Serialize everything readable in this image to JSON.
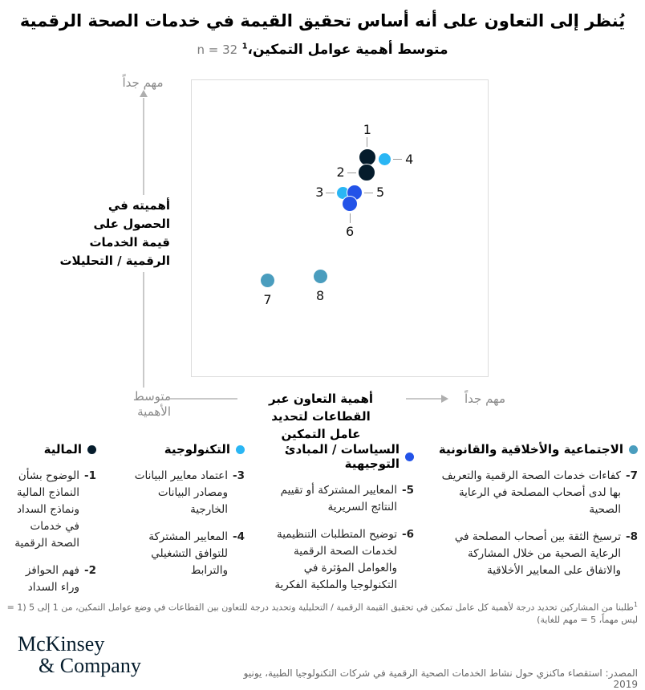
{
  "title": "يُنظر إلى التعاون على أنه أساس تحقيق القيمة في خدمات الصحة الرقمية",
  "subtitle": {
    "text": "متوسط أهمية عوامل التمكين،",
    "sup": "1",
    "n": "n = 32"
  },
  "chart_data": {
    "type": "scatter",
    "xlabel": "أهمية التعاون عبر القطاعات لتحديد عامل التمكين",
    "xlabel_lines": [
      "أهمية التعاون عبر القطاعات لتحديد",
      "عامل التمكين"
    ],
    "ylabel": "أهميته في الحصول على قيمة الخدمات الرقمية / التحليلات",
    "ylabel_lines": [
      "أهميته في",
      "الحصول على",
      "قيمة الخدمات",
      "الرقمية / التحليلات"
    ],
    "y_max_label": "مهم جداً",
    "x_max_label": "مهم جداً",
    "origin_label": "متوسط الأهمية",
    "origin_label_lines": [
      "متوسط",
      "الأهمية"
    ],
    "value_scale": "1 إلى 5 (1 = ليس مهماً، 5 = مهم للغاية)",
    "points": [
      {
        "label": "1",
        "category": "financial",
        "x_pct": 59.3,
        "y_pct": 25.9,
        "size": 22,
        "label_side": "top",
        "leader": true,
        "approx_x": 4.2,
        "approx_y": 4.5
      },
      {
        "label": "2",
        "category": "financial",
        "x_pct": 59.0,
        "y_pct": 31.3,
        "size": 22,
        "label_side": "left",
        "leader": true,
        "approx_x": 4.2,
        "approx_y": 4.4
      },
      {
        "label": "3",
        "category": "technological",
        "x_pct": 51.2,
        "y_pct": 38.0,
        "size": 17,
        "label_side": "left",
        "leader": true,
        "approx_x": 4.0,
        "approx_y": 4.2
      },
      {
        "label": "4",
        "category": "technological",
        "x_pct": 65.2,
        "y_pct": 26.7,
        "size": 17,
        "label_side": "right",
        "leader": true,
        "approx_x": 4.3,
        "approx_y": 4.5
      },
      {
        "label": "5",
        "category": "policies",
        "x_pct": 55.0,
        "y_pct": 38.0,
        "size": 20,
        "label_side": "right",
        "leader": true,
        "approx_x": 4.1,
        "approx_y": 4.2
      },
      {
        "label": "6",
        "category": "policies",
        "x_pct": 53.4,
        "y_pct": 41.6,
        "size": 20,
        "label_side": "bottom",
        "leader": true,
        "approx_x": 4.1,
        "approx_y": 4.2
      },
      {
        "label": "7",
        "category": "social",
        "x_pct": 25.6,
        "y_pct": 67.7,
        "size": 19,
        "label_side": "below",
        "leader": false,
        "approx_x": 3.5,
        "approx_y": 3.7
      },
      {
        "label": "8",
        "category": "social",
        "x_pct": 43.4,
        "y_pct": 66.3,
        "size": 19,
        "label_side": "below",
        "leader": false,
        "approx_x": 3.9,
        "approx_y": 3.7
      }
    ]
  },
  "legend": [
    {
      "name": "financial",
      "label": "المالية",
      "color": "#051c2c",
      "items": [
        {
          "num": "1-",
          "text": "الوضوح بشأن النماذج المالية ونماذج السداد في خدمات الصحة الرقمية"
        },
        {
          "num": "2-",
          "text": "فهم الحوافز وراء السداد"
        }
      ]
    },
    {
      "name": "technological",
      "label": "التكنولوجية",
      "color": "#2ab6f4",
      "items": [
        {
          "num": "3-",
          "text": "اعتماد معايير البيانات ومصادر البيانات الخارجية"
        },
        {
          "num": "4-",
          "text": "المعايير المشتركة للتوافق التشغيلي والترابط"
        }
      ]
    },
    {
      "name": "policies",
      "label": "السياسات / المبادئ التوجيهية",
      "color": "#2353e8",
      "items": [
        {
          "num": "5-",
          "text": "المعايير المشتركة أو تقييم النتائج السريرية"
        },
        {
          "num": "6-",
          "text": "توضيح المتطلبات التنظيمية لخدمات الصحة الرقمية والعوامل المؤثرة في التكنولوجيا والملكية الفكرية"
        }
      ]
    },
    {
      "name": "social",
      "label": "الاجتماعية والأخلاقية والقانونية",
      "color": "#4a9dbe",
      "items": [
        {
          "num": "7-",
          "text": "كفاءات خدمات الصحة الرقمية والتعريف بها لدى أصحاب المصلحة في الرعاية الصحية"
        },
        {
          "num": "8-",
          "text": "ترسيخ الثقة بين أصحاب المصلحة في الرعاية الصحية من خلال المشاركة والاتفاق على المعايير الأخلاقية"
        }
      ]
    }
  ],
  "footnote": {
    "sup": "1",
    "text": "طلبنا من المشاركين تحديد درجة لأهمية كل عامل تمكين في تحقيق القيمة الرقمية / التحليلية وتحديد درجة للتعاون بين القطاعات في وضع عوامل التمكين، من 1 إلى 5 (1 = ليس مهماً، 5 = مهم للغاية)"
  },
  "footer": {
    "logo_line1": "McKinsey",
    "logo_line2": "& Company",
    "source": "المصدر: استقصاء ماكنزي حول نشاط الخدمات الصحية الرقمية في شركات التكنولوجيا الطبية، يونيو 2019"
  }
}
